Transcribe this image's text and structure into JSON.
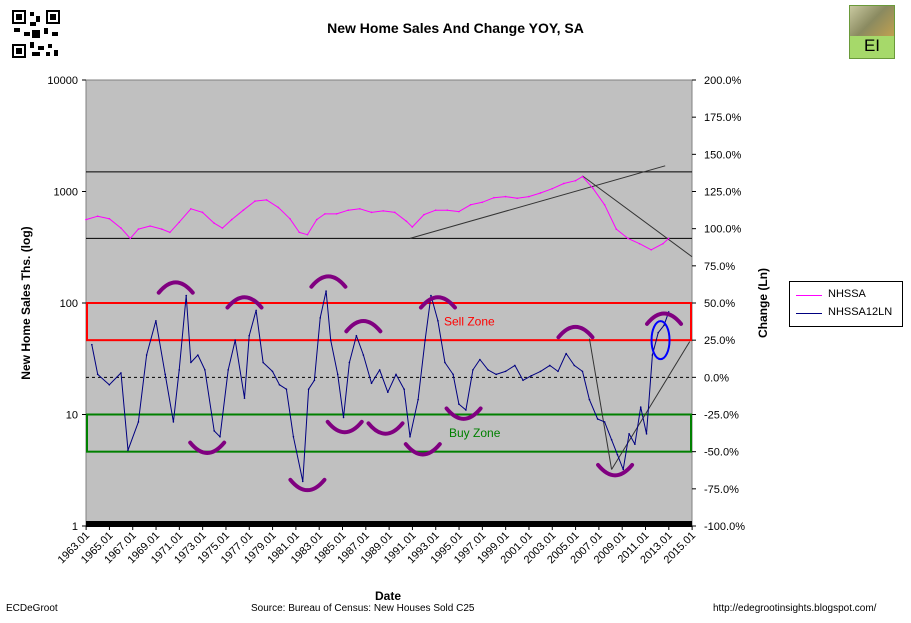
{
  "title": "New Home Sales And Change YOY, SA",
  "footer": {
    "author": "ECDeGroot",
    "source": "Source: Bureau of Census: New Houses Sold C25",
    "url": "http://edegrootinsights.blogspot.com/"
  },
  "logo_text": "EI",
  "colors": {
    "plot_bg": "#c0c0c0",
    "nhssa": "#ff00ff",
    "nhssa12ln": "#000080",
    "sell_zone": "#ff0000",
    "buy_zone": "#008000",
    "marker": "#800080",
    "circle": "#0000ff"
  },
  "chart_data": {
    "type": "line",
    "title": "New Home Sales And Change YOY, SA",
    "xlabel": "Date",
    "ylabel_left": "New Home Sales Ths. (log)",
    "ylabel_right": "Change (Ln)",
    "y_left_scale": "log",
    "y_left_range": [
      1,
      10000
    ],
    "y_left_ticks": [
      "10000",
      "1000",
      "100",
      "10",
      "1"
    ],
    "y_right_range": [
      -1.0,
      2.0
    ],
    "y_right_ticks": [
      "200.0%",
      "175.0%",
      "150.0%",
      "125.0%",
      "100.0%",
      "75.0%",
      "50.0%",
      "25.0%",
      "0.0%",
      "-25.0%",
      "-50.0%",
      "-75.0%",
      "-100.0%"
    ],
    "x_range": [
      1963.0,
      2015.0
    ],
    "x_ticks": [
      "1963.01",
      "1965.01",
      "1967.01",
      "1969.01",
      "1971.01",
      "1973.01",
      "1975.01",
      "1977.01",
      "1979.01",
      "1981.01",
      "1983.01",
      "1985.01",
      "1987.01",
      "1989.01",
      "1991.01",
      "1993.01",
      "1995.01",
      "1997.01",
      "1999.01",
      "2001.01",
      "2003.01",
      "2005.01",
      "2007.01",
      "2009.01",
      "2011.01",
      "2013.01",
      "2015.01"
    ],
    "grid": false,
    "legend_placement": "right",
    "series": [
      {
        "name": "NHSSA",
        "axis": "left",
        "x": [
          1963.0,
          1964.0,
          1965.0,
          1966.0,
          1966.8,
          1967.5,
          1968.5,
          1969.5,
          1970.2,
          1971.0,
          1972.0,
          1973.0,
          1974.0,
          1974.7,
          1975.5,
          1976.5,
          1977.5,
          1978.5,
          1979.5,
          1980.5,
          1981.3,
          1982.0,
          1982.8,
          1983.5,
          1984.5,
          1985.5,
          1986.5,
          1987.5,
          1988.5,
          1989.5,
          1990.5,
          1991.0,
          1992.0,
          1993.0,
          1994.0,
          1995.0,
          1996.0,
          1997.0,
          1998.0,
          1999.0,
          2000.0,
          2001.0,
          2002.0,
          2003.0,
          2004.0,
          2005.0,
          2005.6,
          2006.5,
          2007.5,
          2008.5,
          2009.5,
          2010.5,
          2011.5,
          2012.5,
          2013.0
        ],
        "y": [
          560,
          600,
          570,
          470,
          380,
          460,
          490,
          460,
          430,
          530,
          700,
          650,
          520,
          470,
          560,
          680,
          820,
          840,
          720,
          570,
          430,
          410,
          560,
          630,
          630,
          680,
          700,
          650,
          670,
          650,
          540,
          480,
          620,
          680,
          680,
          660,
          760,
          800,
          880,
          900,
          870,
          900,
          970,
          1060,
          1180,
          1250,
          1360,
          1070,
          760,
          460,
          380,
          340,
          300,
          340,
          380
        ]
      },
      {
        "name": "NHSSA12LN",
        "axis": "right",
        "x": [
          1963.5,
          1964.0,
          1965.0,
          1966.0,
          1966.6,
          1967.5,
          1968.2,
          1969.0,
          1969.8,
          1970.5,
          1971.0,
          1971.6,
          1972.0,
          1972.6,
          1973.2,
          1974.0,
          1974.5,
          1975.2,
          1975.8,
          1976.6,
          1977.0,
          1977.6,
          1978.2,
          1979.0,
          1979.6,
          1980.2,
          1980.8,
          1981.6,
          1982.1,
          1982.6,
          1983.1,
          1983.6,
          1984.0,
          1984.6,
          1985.1,
          1985.6,
          1986.2,
          1986.8,
          1987.5,
          1988.2,
          1988.9,
          1989.6,
          1990.3,
          1990.8,
          1991.5,
          1992.1,
          1992.6,
          1993.2,
          1993.8,
          1994.5,
          1995.0,
          1995.6,
          1996.2,
          1996.8,
          1997.5,
          1998.2,
          1999.0,
          1999.8,
          2000.5,
          2001.2,
          2002.0,
          2002.8,
          2003.5,
          2004.2,
          2004.9,
          2005.6,
          2006.2,
          2006.9,
          2007.5,
          2008.1,
          2008.6,
          2009.1,
          2009.6,
          2010.1,
          2010.6,
          2011.1,
          2011.6,
          2012.1,
          2012.6,
          2013.0
        ],
        "y": [
          0.22,
          0.02,
          -0.05,
          0.03,
          -0.49,
          -0.3,
          0.15,
          0.38,
          0.02,
          -0.3,
          0.05,
          0.55,
          0.1,
          0.15,
          0.05,
          -0.36,
          -0.4,
          0.05,
          0.25,
          -0.14,
          0.28,
          0.45,
          0.1,
          0.04,
          -0.05,
          -0.08,
          -0.4,
          -0.7,
          -0.08,
          -0.02,
          0.4,
          0.58,
          0.25,
          0.02,
          -0.27,
          0.1,
          0.28,
          0.15,
          -0.04,
          0.05,
          -0.1,
          0.02,
          -0.08,
          -0.4,
          -0.15,
          0.25,
          0.55,
          0.38,
          0.1,
          0.02,
          -0.18,
          -0.22,
          0.05,
          0.12,
          0.05,
          0.02,
          0.04,
          0.08,
          -0.02,
          0.01,
          0.04,
          0.08,
          0.04,
          0.16,
          0.08,
          0.04,
          -0.15,
          -0.28,
          -0.3,
          -0.42,
          -0.52,
          -0.62,
          -0.38,
          -0.45,
          -0.2,
          -0.38,
          0.15,
          0.3,
          0.35,
          0.44
        ]
      }
    ],
    "zones": [
      {
        "name": "Sell Zone",
        "axis": "right",
        "from": 0.25,
        "to": 0.5
      },
      {
        "name": "Buy Zone",
        "axis": "right",
        "from": -0.5,
        "to": -0.25
      }
    ],
    "reference_lines": [
      {
        "axis": "left",
        "y": 1500,
        "style": "solid"
      },
      {
        "axis": "left",
        "y": 380,
        "style": "solid"
      },
      {
        "axis": "right",
        "y": 0.0,
        "style": "dashed"
      }
    ],
    "trend_lines": [
      {
        "axis": "left",
        "points": [
          [
            1990.8,
            380
          ],
          [
            2012.7,
            1700
          ]
        ]
      },
      {
        "axis": "left",
        "points": [
          [
            2005.6,
            1380
          ],
          [
            2015.0,
            260
          ]
        ]
      },
      {
        "axis": "right",
        "points": [
          [
            2006.2,
            0.26
          ],
          [
            2008.1,
            -0.62
          ]
        ]
      },
      {
        "axis": "right",
        "points": [
          [
            2008.1,
            -0.62
          ],
          [
            2014.8,
            0.24
          ]
        ]
      }
    ],
    "annotations": [
      {
        "type": "arc-top",
        "axis": "right",
        "x": 1970.7,
        "y": 0.63
      },
      {
        "type": "arc-top",
        "axis": "right",
        "x": 1976.6,
        "y": 0.53
      },
      {
        "type": "arc-top",
        "axis": "right",
        "x": 1983.8,
        "y": 0.67
      },
      {
        "type": "arc-top",
        "axis": "right",
        "x": 1986.8,
        "y": 0.37
      },
      {
        "type": "arc-top",
        "axis": "right",
        "x": 1993.2,
        "y": 0.53
      },
      {
        "type": "arc-top",
        "axis": "right",
        "x": 2005.0,
        "y": 0.33
      },
      {
        "type": "arc-top",
        "axis": "right",
        "x": 2012.6,
        "y": 0.42
      },
      {
        "type": "arc-bottom",
        "axis": "right",
        "x": 1973.4,
        "y": -0.5
      },
      {
        "type": "arc-bottom",
        "axis": "right",
        "x": 1982.0,
        "y": -0.75
      },
      {
        "type": "arc-bottom",
        "axis": "right",
        "x": 1985.2,
        "y": -0.36
      },
      {
        "type": "arc-bottom",
        "axis": "right",
        "x": 1988.7,
        "y": -0.37
      },
      {
        "type": "arc-bottom",
        "axis": "right",
        "x": 1991.9,
        "y": -0.51
      },
      {
        "type": "arc-bottom",
        "axis": "right",
        "x": 1995.4,
        "y": -0.27
      },
      {
        "type": "arc-bottom",
        "axis": "right",
        "x": 2008.4,
        "y": -0.65
      },
      {
        "type": "ellipse",
        "axis": "right",
        "x": 2012.3,
        "y": 0.25
      }
    ]
  }
}
